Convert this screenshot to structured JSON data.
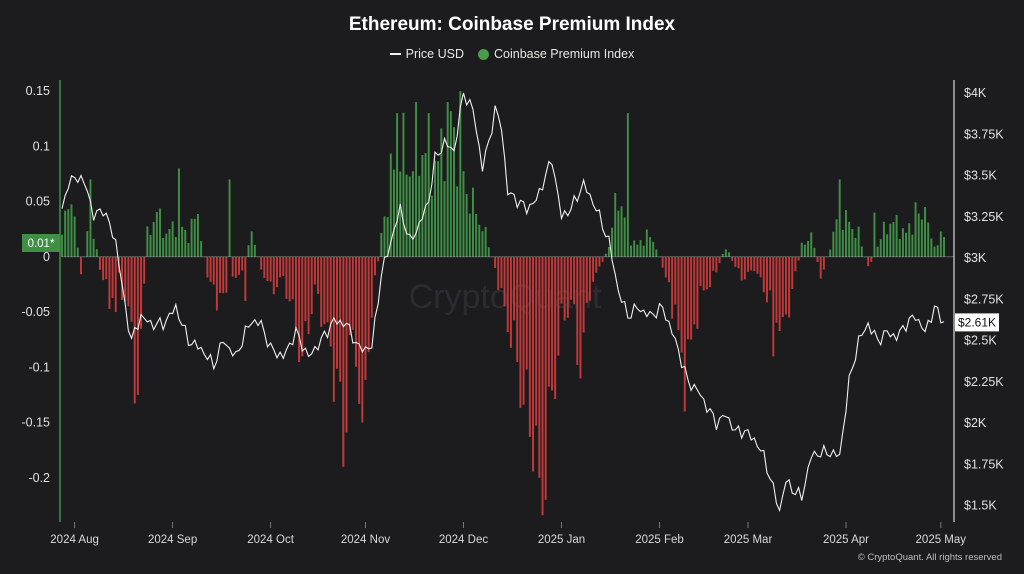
{
  "chart_data": {
    "type": "bar",
    "title": "Ethereum: Coinbase Premium Index",
    "legend": {
      "placement": "top-center",
      "items": [
        {
          "label": "Price USD",
          "kind": "line",
          "color": "#ffffff"
        },
        {
          "label": "Coinbase Premium Index",
          "kind": "dot",
          "color": "#4a9a4c"
        }
      ]
    },
    "colors": {
      "positive": "#3f8f45",
      "negative": "#c2393a",
      "price_line": "#f0f0f0",
      "current_premium_bg": "#3f8f45",
      "current_price_bg": "#ffffff"
    },
    "x_tick_labels": [
      "2024 Aug",
      "2024 Sep",
      "2024 Oct",
      "2024 Nov",
      "2024 Dec",
      "2025 Jan",
      "2025 Feb",
      "2025 Mar",
      "2025 Apr",
      "2025 May"
    ],
    "y_left": {
      "range": [
        -0.24,
        0.16
      ],
      "ticks": [
        0.15,
        0.1,
        0.05,
        0,
        -0.05,
        -0.1,
        -0.15,
        -0.2
      ],
      "tick_labels": [
        "0.15",
        "0.1",
        "0.05",
        "0",
        "-0.05",
        "-0.1",
        "-0.15",
        "-0.2"
      ]
    },
    "y_right": {
      "range": [
        1400,
        4080
      ],
      "ticks": [
        4000,
        3750,
        3500,
        3250,
        3000,
        2750,
        2500,
        2250,
        2000,
        1750,
        1500
      ],
      "tick_labels": [
        "$4K",
        "$3.75K",
        "$3.5K",
        "$3.25K",
        "$3K",
        "$2.75K",
        "$2.5K",
        "$2.25K",
        "$2K",
        "$1.75K",
        "$1.5K"
      ]
    },
    "current_premium_label": "0.01*",
    "current_price_label": "$2.61K",
    "series": [
      {
        "name": "Coinbase Premium Index",
        "axis": "left",
        "knots": [
          {
            "d": 0,
            "v": 0.02
          },
          {
            "d": 3,
            "v": 0.06
          },
          {
            "d": 6,
            "v": -0.02
          },
          {
            "d": 9,
            "v": 0.04
          },
          {
            "d": 12,
            "v": -0.01
          },
          {
            "d": 15,
            "v": -0.04
          },
          {
            "d": 18,
            "v": -0.02
          },
          {
            "d": 21,
            "v": -0.05
          },
          {
            "d": 24,
            "v": -0.12
          },
          {
            "d": 27,
            "v": 0.02
          },
          {
            "d": 30,
            "v": 0.04
          },
          {
            "d": 33,
            "v": 0.02
          },
          {
            "d": 36,
            "v": 0.03
          },
          {
            "d": 40,
            "v": 0.02
          },
          {
            "d": 43,
            "v": 0.04
          },
          {
            "d": 46,
            "v": -0.02
          },
          {
            "d": 50,
            "v": -0.04
          },
          {
            "d": 53,
            "v": -0.03
          },
          {
            "d": 57,
            "v": -0.01
          },
          {
            "d": 60,
            "v": 0.02
          },
          {
            "d": 63,
            "v": -0.01
          },
          {
            "d": 66,
            "v": -0.03
          },
          {
            "d": 70,
            "v": -0.02
          },
          {
            "d": 73,
            "v": -0.05
          },
          {
            "d": 76,
            "v": -0.09
          },
          {
            "d": 80,
            "v": -0.03
          },
          {
            "d": 83,
            "v": -0.06
          },
          {
            "d": 86,
            "v": -0.1
          },
          {
            "d": 89,
            "v": -0.15
          },
          {
            "d": 92,
            "v": -0.07
          },
          {
            "d": 95,
            "v": -0.13
          },
          {
            "d": 98,
            "v": -0.05
          },
          {
            "d": 101,
            "v": 0.02
          },
          {
            "d": 104,
            "v": 0.07
          },
          {
            "d": 107,
            "v": 0.1
          },
          {
            "d": 110,
            "v": 0.08
          },
          {
            "d": 113,
            "v": 0.1
          },
          {
            "d": 116,
            "v": 0.09
          },
          {
            "d": 119,
            "v": 0.08
          },
          {
            "d": 122,
            "v": 0.13
          },
          {
            "d": 125,
            "v": 0.1
          },
          {
            "d": 128,
            "v": 0.06
          },
          {
            "d": 131,
            "v": 0.04
          },
          {
            "d": 134,
            "v": 0.02
          },
          {
            "d": 137,
            "v": -0.01
          },
          {
            "d": 140,
            "v": -0.05
          },
          {
            "d": 143,
            "v": -0.08
          },
          {
            "d": 146,
            "v": -0.13
          },
          {
            "d": 149,
            "v": -0.16
          },
          {
            "d": 152,
            "v": -0.2
          },
          {
            "d": 155,
            "v": -0.13
          },
          {
            "d": 158,
            "v": -0.06
          },
          {
            "d": 161,
            "v": -0.04
          },
          {
            "d": 164,
            "v": -0.1
          },
          {
            "d": 167,
            "v": -0.03
          },
          {
            "d": 170,
            "v": -0.01
          },
          {
            "d": 173,
            "v": 0.01
          },
          {
            "d": 176,
            "v": 0.06
          },
          {
            "d": 179,
            "v": 0.02
          },
          {
            "d": 182,
            "v": 0.01
          },
          {
            "d": 185,
            "v": 0.02
          },
          {
            "d": 188,
            "v": 0.01
          },
          {
            "d": 191,
            "v": -0.02
          },
          {
            "d": 194,
            "v": -0.05
          },
          {
            "d": 197,
            "v": -0.12
          },
          {
            "d": 200,
            "v": -0.06
          },
          {
            "d": 203,
            "v": -0.03
          },
          {
            "d": 206,
            "v": -0.02
          },
          {
            "d": 210,
            "v": 0.01
          },
          {
            "d": 213,
            "v": -0.01
          },
          {
            "d": 216,
            "v": -0.02
          },
          {
            "d": 219,
            "v": -0.01
          },
          {
            "d": 222,
            "v": -0.03
          },
          {
            "d": 225,
            "v": -0.04
          },
          {
            "d": 228,
            "v": -0.07
          },
          {
            "d": 231,
            "v": -0.03
          },
          {
            "d": 234,
            "v": 0.01
          },
          {
            "d": 237,
            "v": 0.02
          },
          {
            "d": 240,
            "v": -0.02
          },
          {
            "d": 243,
            "v": 0.01
          },
          {
            "d": 246,
            "v": 0.04
          },
          {
            "d": 249,
            "v": 0.03
          },
          {
            "d": 252,
            "v": 0.02
          },
          {
            "d": 255,
            "v": -0.01
          },
          {
            "d": 258,
            "v": 0.01
          },
          {
            "d": 261,
            "v": 0.03
          },
          {
            "d": 264,
            "v": 0.03
          },
          {
            "d": 267,
            "v": 0.02
          },
          {
            "d": 270,
            "v": 0.04
          },
          {
            "d": 273,
            "v": 0.03
          },
          {
            "d": 276,
            "v": 0.01
          },
          {
            "d": 279,
            "v": 0.02
          }
        ],
        "spikes": [
          {
            "d": 9,
            "v": 0.07
          },
          {
            "d": 17,
            "v": -0.05
          },
          {
            "d": 24,
            "v": -0.125
          },
          {
            "d": 37,
            "v": 0.08
          },
          {
            "d": 53,
            "v": 0.07
          },
          {
            "d": 58,
            "v": -0.04
          },
          {
            "d": 76,
            "v": -0.09
          },
          {
            "d": 89,
            "v": -0.19
          },
          {
            "d": 95,
            "v": -0.15
          },
          {
            "d": 106,
            "v": 0.13
          },
          {
            "d": 112,
            "v": 0.14
          },
          {
            "d": 116,
            "v": 0.13
          },
          {
            "d": 122,
            "v": 0.14
          },
          {
            "d": 126,
            "v": 0.15
          },
          {
            "d": 151,
            "v": -0.2
          },
          {
            "d": 153,
            "v": -0.22
          },
          {
            "d": 164,
            "v": -0.11
          },
          {
            "d": 179,
            "v": 0.13
          },
          {
            "d": 197,
            "v": -0.14
          },
          {
            "d": 225,
            "v": -0.09
          },
          {
            "d": 246,
            "v": 0.07
          },
          {
            "d": 257,
            "v": 0.04
          },
          {
            "d": 273,
            "v": 0.045
          }
        ]
      },
      {
        "name": "Price USD",
        "axis": "right",
        "knots": [
          {
            "d": 0,
            "v": 3300
          },
          {
            "d": 2,
            "v": 3450
          },
          {
            "d": 5,
            "v": 3500
          },
          {
            "d": 8,
            "v": 3420
          },
          {
            "d": 10,
            "v": 3250
          },
          {
            "d": 13,
            "v": 3300
          },
          {
            "d": 17,
            "v": 3100
          },
          {
            "d": 20,
            "v": 2700
          },
          {
            "d": 22,
            "v": 2500
          },
          {
            "d": 25,
            "v": 2650
          },
          {
            "d": 28,
            "v": 2600
          },
          {
            "d": 32,
            "v": 2600
          },
          {
            "d": 36,
            "v": 2700
          },
          {
            "d": 40,
            "v": 2500
          },
          {
            "d": 44,
            "v": 2450
          },
          {
            "d": 48,
            "v": 2350
          },
          {
            "d": 51,
            "v": 2500
          },
          {
            "d": 55,
            "v": 2400
          },
          {
            "d": 58,
            "v": 2550
          },
          {
            "d": 60,
            "v": 2620
          },
          {
            "d": 63,
            "v": 2600
          },
          {
            "d": 66,
            "v": 2450
          },
          {
            "d": 70,
            "v": 2400
          },
          {
            "d": 74,
            "v": 2550
          },
          {
            "d": 78,
            "v": 2400
          },
          {
            "d": 82,
            "v": 2500
          },
          {
            "d": 86,
            "v": 2620
          },
          {
            "d": 90,
            "v": 2600
          },
          {
            "d": 94,
            "v": 2450
          },
          {
            "d": 98,
            "v": 2460
          },
          {
            "d": 101,
            "v": 2900
          },
          {
            "d": 104,
            "v": 3100
          },
          {
            "d": 107,
            "v": 3300
          },
          {
            "d": 110,
            "v": 3100
          },
          {
            "d": 113,
            "v": 3200
          },
          {
            "d": 116,
            "v": 3350
          },
          {
            "d": 118,
            "v": 3600
          },
          {
            "d": 121,
            "v": 3700
          },
          {
            "d": 124,
            "v": 3650
          },
          {
            "d": 127,
            "v": 4000
          },
          {
            "d": 130,
            "v": 3900
          },
          {
            "d": 133,
            "v": 3550
          },
          {
            "d": 135,
            "v": 3700
          },
          {
            "d": 137,
            "v": 3900
          },
          {
            "d": 139,
            "v": 3800
          },
          {
            "d": 141,
            "v": 3400
          },
          {
            "d": 144,
            "v": 3350
          },
          {
            "d": 147,
            "v": 3300
          },
          {
            "d": 150,
            "v": 3350
          },
          {
            "d": 153,
            "v": 3500
          },
          {
            "d": 155,
            "v": 3600
          },
          {
            "d": 158,
            "v": 3250
          },
          {
            "d": 161,
            "v": 3300
          },
          {
            "d": 165,
            "v": 3450
          },
          {
            "d": 169,
            "v": 3300
          },
          {
            "d": 173,
            "v": 3100
          },
          {
            "d": 176,
            "v": 2800
          },
          {
            "d": 179,
            "v": 2650
          },
          {
            "d": 182,
            "v": 2700
          },
          {
            "d": 186,
            "v": 2650
          },
          {
            "d": 190,
            "v": 2700
          },
          {
            "d": 194,
            "v": 2500
          },
          {
            "d": 198,
            "v": 2250
          },
          {
            "d": 201,
            "v": 2200
          },
          {
            "d": 204,
            "v": 2100
          },
          {
            "d": 207,
            "v": 2000
          },
          {
            "d": 210,
            "v": 2050
          },
          {
            "d": 213,
            "v": 1950
          },
          {
            "d": 216,
            "v": 1950
          },
          {
            "d": 219,
            "v": 1900
          },
          {
            "d": 222,
            "v": 1800
          },
          {
            "d": 225,
            "v": 1600
          },
          {
            "d": 227,
            "v": 1470
          },
          {
            "d": 229,
            "v": 1650
          },
          {
            "d": 231,
            "v": 1600
          },
          {
            "d": 234,
            "v": 1550
          },
          {
            "d": 237,
            "v": 1800
          },
          {
            "d": 240,
            "v": 1820
          },
          {
            "d": 243,
            "v": 1820
          },
          {
            "d": 246,
            "v": 1800
          },
          {
            "d": 249,
            "v": 2250
          },
          {
            "d": 252,
            "v": 2500
          },
          {
            "d": 255,
            "v": 2600
          },
          {
            "d": 258,
            "v": 2500
          },
          {
            "d": 261,
            "v": 2550
          },
          {
            "d": 264,
            "v": 2520
          },
          {
            "d": 267,
            "v": 2600
          },
          {
            "d": 270,
            "v": 2650
          },
          {
            "d": 273,
            "v": 2550
          },
          {
            "d": 276,
            "v": 2700
          },
          {
            "d": 279,
            "v": 2610
          }
        ]
      }
    ]
  },
  "footer": {
    "copyright": "© CryptoQuant. All rights reserved"
  },
  "watermark": "CryptoQuant"
}
